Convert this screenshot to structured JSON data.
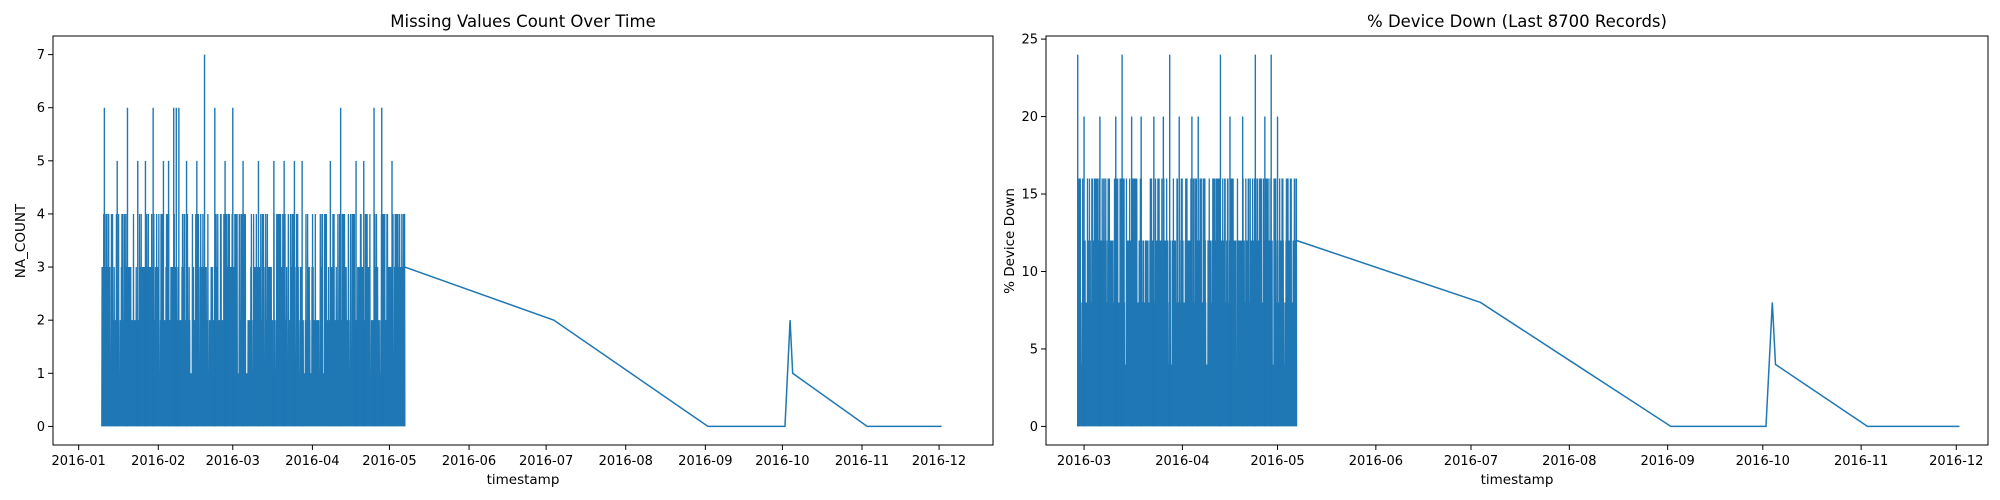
{
  "chart_data": [
    {
      "type": "line",
      "title": "Missing Values Count Over Time",
      "xlabel": "timestamp",
      "ylabel": "NA_COUNT",
      "x_ticks": [
        "2016-01",
        "2016-02",
        "2016-03",
        "2016-04",
        "2016-05",
        "2016-06",
        "2016-07",
        "2016-08",
        "2016-09",
        "2016-10",
        "2016-11",
        "2016-12"
      ],
      "y_ticks": [
        "0",
        "1",
        "2",
        "3",
        "4",
        "5",
        "6",
        "7"
      ],
      "xlim": [
        "2015-12-22",
        "2016-12-22"
      ],
      "ylim": [
        -0.35,
        7.35
      ],
      "grid": false,
      "color": "#1f77b4",
      "series": [
        {
          "dense_segment": {
            "x_range": [
              "2016-01-10",
              "2016-05-07"
            ],
            "y_range": [
              0,
              4
            ],
            "peaks": [
              {
                "x": "2016-01-11",
                "y": 6
              },
              {
                "x": "2016-01-16",
                "y": 5
              },
              {
                "x": "2016-01-20",
                "y": 6
              },
              {
                "x": "2016-01-24",
                "y": 5
              },
              {
                "x": "2016-01-27",
                "y": 5
              },
              {
                "x": "2016-01-30",
                "y": 6
              },
              {
                "x": "2016-02-03",
                "y": 5
              },
              {
                "x": "2016-02-05",
                "y": 5
              },
              {
                "x": "2016-02-07",
                "y": 6
              },
              {
                "x": "2016-02-08",
                "y": 6
              },
              {
                "x": "2016-02-09",
                "y": 6
              },
              {
                "x": "2016-02-12",
                "y": 5
              },
              {
                "x": "2016-02-16",
                "y": 5
              },
              {
                "x": "2016-02-19",
                "y": 7
              },
              {
                "x": "2016-02-23",
                "y": 6
              },
              {
                "x": "2016-02-27",
                "y": 5
              },
              {
                "x": "2016-03-01",
                "y": 6
              },
              {
                "x": "2016-03-05",
                "y": 5
              },
              {
                "x": "2016-03-11",
                "y": 5
              },
              {
                "x": "2016-03-17",
                "y": 5
              },
              {
                "x": "2016-03-21",
                "y": 5
              },
              {
                "x": "2016-03-25",
                "y": 5
              },
              {
                "x": "2016-03-28",
                "y": 5
              },
              {
                "x": "2016-04-08",
                "y": 5
              },
              {
                "x": "2016-04-12",
                "y": 6
              },
              {
                "x": "2016-04-18",
                "y": 5
              },
              {
                "x": "2016-04-21",
                "y": 5
              },
              {
                "x": "2016-04-25",
                "y": 6
              },
              {
                "x": "2016-04-28",
                "y": 6
              },
              {
                "x": "2016-05-02",
                "y": 5
              }
            ]
          },
          "points": [
            {
              "x": "2016-05-07",
              "y": 3
            },
            {
              "x": "2016-07-04",
              "y": 2
            },
            {
              "x": "2016-08-03",
              "y": 1
            },
            {
              "x": "2016-09-02",
              "y": 0
            },
            {
              "x": "2016-10-02",
              "y": 0
            },
            {
              "x": "2016-10-04",
              "y": 2
            },
            {
              "x": "2016-10-05",
              "y": 1
            },
            {
              "x": "2016-11-03",
              "y": 0
            },
            {
              "x": "2016-12-02",
              "y": 0
            }
          ]
        }
      ]
    },
    {
      "type": "line",
      "title": "% Device Down (Last 8700 Records)",
      "xlabel": "timestamp",
      "ylabel": "% Device Down",
      "x_ticks": [
        "2016-03",
        "2016-04",
        "2016-05",
        "2016-06",
        "2016-07",
        "2016-08",
        "2016-09",
        "2016-10",
        "2016-11",
        "2016-12"
      ],
      "y_ticks": [
        "0",
        "5",
        "10",
        "15",
        "20",
        "25"
      ],
      "xlim": [
        "2016-02-18",
        "2016-12-11"
      ],
      "ylim": [
        -1.2,
        25.2
      ],
      "grid": false,
      "color": "#1f77b4",
      "series": [
        {
          "dense_segment": {
            "x_range": [
              "2016-02-28",
              "2016-05-07"
            ],
            "y_range": [
              0,
              16
            ],
            "peaks": [
              {
                "x": "2016-02-28",
                "y": 24
              },
              {
                "x": "2016-03-01",
                "y": 20
              },
              {
                "x": "2016-03-06",
                "y": 20
              },
              {
                "x": "2016-03-11",
                "y": 20
              },
              {
                "x": "2016-03-13",
                "y": 24
              },
              {
                "x": "2016-03-16",
                "y": 20
              },
              {
                "x": "2016-03-19",
                "y": 20
              },
              {
                "x": "2016-03-23",
                "y": 20
              },
              {
                "x": "2016-03-26",
                "y": 20
              },
              {
                "x": "2016-03-28",
                "y": 24
              },
              {
                "x": "2016-03-31",
                "y": 20
              },
              {
                "x": "2016-04-04",
                "y": 20
              },
              {
                "x": "2016-04-06",
                "y": 20
              },
              {
                "x": "2016-04-13",
                "y": 24
              },
              {
                "x": "2016-04-16",
                "y": 20
              },
              {
                "x": "2016-04-20",
                "y": 20
              },
              {
                "x": "2016-04-24",
                "y": 24
              },
              {
                "x": "2016-04-27",
                "y": 20
              },
              {
                "x": "2016-04-29",
                "y": 24
              },
              {
                "x": "2016-05-01",
                "y": 20
              }
            ]
          },
          "points": [
            {
              "x": "2016-05-07",
              "y": 12
            },
            {
              "x": "2016-07-04",
              "y": 8
            },
            {
              "x": "2016-08-03",
              "y": 4
            },
            {
              "x": "2016-09-02",
              "y": 0
            },
            {
              "x": "2016-10-02",
              "y": 0
            },
            {
              "x": "2016-10-04",
              "y": 8
            },
            {
              "x": "2016-10-05",
              "y": 4
            },
            {
              "x": "2016-11-03",
              "y": 0
            },
            {
              "x": "2016-12-02",
              "y": 0
            }
          ]
        }
      ]
    }
  ]
}
